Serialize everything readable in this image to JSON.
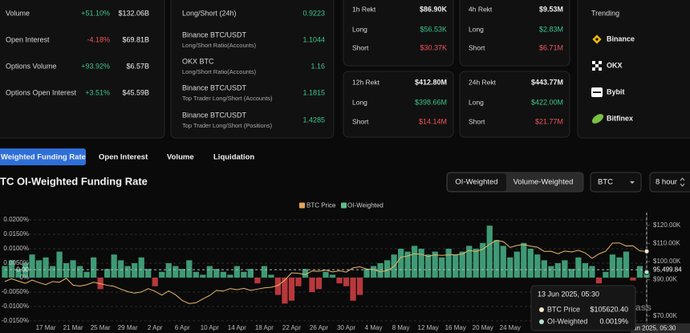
{
  "stats": [
    {
      "label": "Volume",
      "change": "+51.10%",
      "value": "$132.06B"
    },
    {
      "label": "Open Interest",
      "change": "-4.18%",
      "value": "$69.81B"
    },
    {
      "label": "Options Volume",
      "change": "+93.92%",
      "value": "$6.57B"
    },
    {
      "label": "Options Open Interest",
      "change": "+3.51%",
      "value": "$45.59B"
    }
  ],
  "long_short": [
    {
      "label": "Long/Short (24h)",
      "value": "0.9223"
    },
    {
      "label": "Binance BTC/USDT",
      "sublabel": "Long/Short Ratio(Accounts)",
      "value": "1.1044"
    },
    {
      "label": "OKX BTC",
      "sublabel": "Long/Short Ratio(Accounts)",
      "value": "1.16"
    },
    {
      "label": "Binance BTC/USDT",
      "sublabel": "Top Trader Long/Short (Accounts)",
      "value": "1.1815"
    },
    {
      "label": "Binance BTC/USDT",
      "sublabel": "Top Trader Long/Short (Positions)",
      "value": "1.4285"
    }
  ],
  "rekt": [
    {
      "title": "1h Rekt",
      "total": "$86.90K",
      "long": "$56.53K",
      "short": "$30.37K"
    },
    {
      "title": "4h Rekt",
      "total": "$9.53M",
      "long": "$2.83M",
      "short": "$6.71M"
    },
    {
      "title": "12h Rekt",
      "total": "$412.80M",
      "long": "$398.66M",
      "short": "$14.14M"
    },
    {
      "title": "24h Rekt",
      "total": "$443.77M",
      "long": "$422.00M",
      "short": "$21.77M"
    }
  ],
  "rekt_labels": {
    "long": "Long",
    "short": "Short"
  },
  "trending": {
    "title": "Trending",
    "items": [
      "Binance",
      "OKX",
      "Bybit",
      "Bitfinex"
    ]
  },
  "tabs": [
    "Weighted Funding Rate",
    "Open Interest",
    "Volume",
    "Liquidation"
  ],
  "active_tab": 0,
  "section": {
    "title": "TC OI-Weighted Funding Rate",
    "modes": [
      "OI-Weighted",
      "Volume-Weighted"
    ],
    "active_mode": 0,
    "coin": "BTC",
    "interval": "8 hour"
  },
  "chart_data": {
    "type": "bar-line",
    "categories": [
      null,
      null,
      null,
      null,
      null,
      null,
      "17 Mar",
      null,
      null,
      null,
      "21 Mar",
      null,
      null,
      null,
      "25 Mar",
      null,
      null,
      null,
      "29 Mar",
      null,
      null,
      null,
      "2 Apr",
      null,
      null,
      null,
      "6 Apr",
      null,
      null,
      null,
      "10 Apr",
      null,
      null,
      null,
      "14 Apr",
      null,
      null,
      null,
      "18 Apr",
      null,
      null,
      null,
      "22 Apr",
      null,
      null,
      null,
      "26 Apr",
      null,
      null,
      null,
      "30 Apr",
      null,
      null,
      null,
      "4 May",
      null,
      null,
      null,
      "8 May",
      null,
      null,
      null,
      "12 May",
      null,
      null,
      null,
      "16 May",
      null,
      null,
      null,
      "20 May",
      null,
      null,
      null,
      "24 May",
      null,
      null,
      null,
      null,
      null,
      null,
      null,
      null,
      null,
      null,
      null,
      null,
      null,
      null,
      null,
      null,
      null,
      null,
      null,
      null
    ],
    "series": [
      {
        "name": "BTC Price",
        "color": "#e8b66a",
        "axis": "y2",
        "values": [
          89000,
          90500,
          89200,
          88000,
          89800,
          88400,
          87300,
          89000,
          88600,
          90800,
          87000,
          86500,
          87200,
          88600,
          87800,
          86900,
          86300,
          84800,
          83400,
          82600,
          83200,
          85100,
          83600,
          81500,
          83800,
          81700,
          78500,
          76800,
          77300,
          79400,
          81300,
          84100,
          83700,
          85100,
          84500,
          85200,
          84100,
          84800,
          85500,
          85800,
          86800,
          89700,
          93800,
          93500,
          92800,
          94800,
          94600,
          95300,
          94300,
          94900,
          94200,
          96500,
          97100,
          95900,
          95600,
          94300,
          95100,
          97200,
          102400,
          103100,
          104300,
          104000,
          102800,
          103700,
          103400,
          103700,
          103800,
          104100,
          106200,
          105600,
          106800,
          109500,
          111700,
          111000,
          107800,
          108900,
          109400,
          108500,
          107900,
          105600,
          105700,
          104300,
          105800,
          105300,
          106200,
          104800,
          101800,
          104200,
          105700,
          110200,
          110300,
          108600,
          108700,
          105900,
          105620.4
        ]
      },
      {
        "name": "OI-Weighted",
        "color": "#3f9a75",
        "negative_color": "#b8383b",
        "values": [
          0.004,
          0.006,
          0.003,
          0.005,
          0.008,
          0.006,
          0.007,
          0.004,
          0.009,
          0.005,
          0.006,
          0.004,
          0.002,
          0.007,
          -0.004,
          0.003,
          0.008,
          0.006,
          0.004,
          0.005,
          0.007,
          0.003,
          -0.003,
          0.002,
          0.005,
          0.004,
          0.003,
          0.006,
          0.002,
          0.001,
          0.004,
          0.003,
          0.002,
          0.001,
          0.004,
          0.002,
          0.003,
          -0.002,
          0.004,
          0.001,
          -0.006,
          -0.009,
          -0.008,
          -0.003,
          0.003,
          -0.005,
          -0.004,
          0.002,
          0.001,
          -0.002,
          -0.003,
          -0.008,
          -0.006,
          0.003,
          0.004,
          0.005,
          0.006,
          0.008,
          0.01,
          0.009,
          0.011,
          0.01,
          0.008,
          0.009,
          0.007,
          0.01,
          0.008,
          0.009,
          0.011,
          0.01,
          0.012,
          0.018,
          0.013,
          0.011,
          0.007,
          0.009,
          0.012,
          0.01,
          0.008,
          0.006,
          0.004,
          0.005,
          0.006,
          0.003,
          0.007,
          0.005,
          0.004,
          -0.002,
          0.002,
          0.008,
          0.007,
          0.009,
          -0.001,
          0.004,
          0.0019
        ]
      }
    ],
    "legend_colors": [
      "#e2a657",
      "#5ec08e"
    ],
    "ylim": [
      -0.0178,
      0.0225
    ],
    "yticks": [
      {
        "value": 0.02,
        "label": "0.0200%"
      },
      {
        "value": 0.015,
        "label": "0.0150%"
      },
      {
        "value": 0.01,
        "label": "0.0100%"
      },
      {
        "value": 0.005,
        "label": "0.0050%"
      },
      {
        "value": 0,
        "label": "0%"
      },
      {
        "value": -0.005,
        "label": "-0.0050%"
      },
      {
        "value": -0.01,
        "label": "-0.0100%"
      },
      {
        "value": -0.015,
        "label": "-0.0150%"
      }
    ],
    "y2lim": [
      62800,
      127000
    ],
    "y2ticks": [
      {
        "value": 120000,
        "label": "$120.00K"
      },
      {
        "value": 110000,
        "label": "$110.00K"
      },
      {
        "value": 100000,
        "label": "$100.00K"
      },
      {
        "value": 90000,
        "label": "$90.00K"
      },
      {
        "value": 70000,
        "label": "$70.00K"
      }
    ],
    "grid": true,
    "crosshair": {
      "y2": {
        "value": 95499.84,
        "label": "95,499.84"
      },
      "y_label": "0.00",
      "x_label": "un 2025, 05:30"
    },
    "tooltip": {
      "title": "13 Jun 2025, 05:30",
      "rows": [
        {
          "name": "BTC Price",
          "value": "$105620.40"
        },
        {
          "name": "OI-Weighted",
          "value": "0.0019%"
        }
      ]
    },
    "watermark": "ass"
  }
}
